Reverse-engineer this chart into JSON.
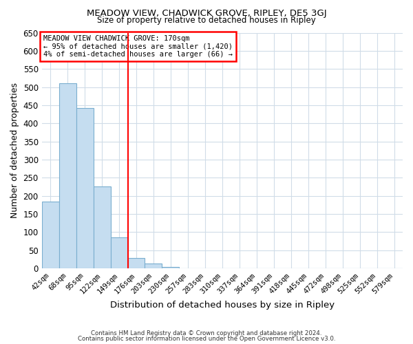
{
  "title": "MEADOW VIEW, CHADWICK GROVE, RIPLEY, DE5 3GJ",
  "subtitle": "Size of property relative to detached houses in Ripley",
  "xlabel": "Distribution of detached houses by size in Ripley",
  "ylabel": "Number of detached properties",
  "bar_labels": [
    "42sqm",
    "68sqm",
    "95sqm",
    "122sqm",
    "149sqm",
    "176sqm",
    "203sqm",
    "230sqm",
    "257sqm",
    "283sqm",
    "310sqm",
    "337sqm",
    "364sqm",
    "391sqm",
    "418sqm",
    "445sqm",
    "472sqm",
    "498sqm",
    "525sqm",
    "552sqm",
    "579sqm"
  ],
  "bar_values": [
    185,
    510,
    443,
    227,
    85,
    29,
    14,
    4,
    1,
    0,
    0,
    0,
    1,
    0,
    0,
    0,
    0,
    0,
    0,
    0,
    1
  ],
  "bar_color": "#c5ddf0",
  "bar_edgecolor": "#7aaecf",
  "vline_x_index": 4.5,
  "vline_color": "red",
  "ylim": [
    0,
    650
  ],
  "yticks": [
    0,
    50,
    100,
    150,
    200,
    250,
    300,
    350,
    400,
    450,
    500,
    550,
    600,
    650
  ],
  "annotation_title": "MEADOW VIEW CHADWICK GROVE: 170sqm",
  "annotation_line1": "← 95% of detached houses are smaller (1,420)",
  "annotation_line2": "4% of semi-detached houses are larger (66) →",
  "footer1": "Contains HM Land Registry data © Crown copyright and database right 2024.",
  "footer2": "Contains public sector information licensed under the Open Government Licence v3.0.",
  "background_color": "#ffffff",
  "plot_background": "#ffffff",
  "grid_color": "#d0dce8",
  "annotation_box_color": "white",
  "annotation_box_edgecolor": "red"
}
